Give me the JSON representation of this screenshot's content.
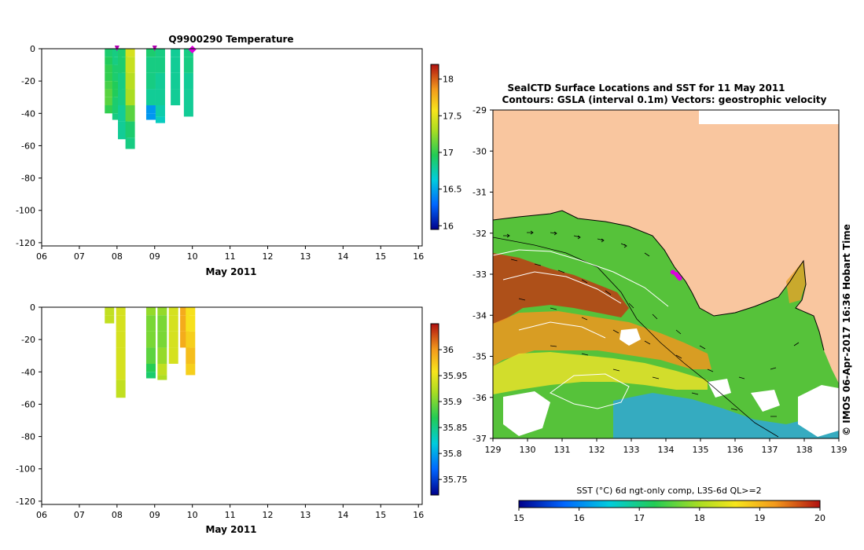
{
  "chart_data": [
    {
      "type": "heatmap",
      "title": "Q9900290  Temperature",
      "xlabel": "May 2011",
      "ylabel": "",
      "x_ticks": [
        "06",
        "07",
        "08",
        "09",
        "10",
        "11",
        "12",
        "13",
        "14",
        "15",
        "16"
      ],
      "y_ticks": [
        "0",
        "-20",
        "-40",
        "-60",
        "-80",
        "-100",
        "-120"
      ],
      "xlim": [
        6,
        16.1
      ],
      "ylim": [
        -122,
        0
      ],
      "profile_markers": [
        8.0,
        9.0
      ],
      "current_marker": 10.0,
      "colorbar": {
        "min": 15.95,
        "max": 18.2,
        "ticks": [
          "16",
          "16.5",
          "17",
          "17.5",
          "18"
        ]
      },
      "profiles": [
        {
          "day": 7.8,
          "depths": [
            -5,
            -10,
            -15,
            -20,
            -25,
            -30,
            -35,
            -40
          ],
          "values": [
            16.9,
            16.95,
            17.0,
            17.0,
            17.05,
            17.1,
            17.1,
            17.0
          ]
        },
        {
          "day": 8.0,
          "depths": [
            -5,
            -10,
            -15,
            -20,
            -25,
            -30,
            -35,
            -40,
            -44
          ],
          "values": [
            16.85,
            16.85,
            16.9,
            16.9,
            16.95,
            16.95,
            16.9,
            16.9,
            16.85
          ]
        },
        {
          "day": 8.15,
          "depths": [
            -5,
            -15,
            -25,
            -35,
            -45,
            -56
          ],
          "values": [
            16.9,
            16.9,
            16.85,
            16.85,
            16.8,
            16.8
          ]
        },
        {
          "day": 8.35,
          "depths": [
            -5,
            -15,
            -25,
            -35,
            -45,
            -55,
            -62
          ],
          "values": [
            17.45,
            17.4,
            17.35,
            17.3,
            17.1,
            16.9,
            16.85
          ]
        },
        {
          "day": 8.9,
          "depths": [
            -5,
            -15,
            -25,
            -35,
            -40,
            -44
          ],
          "values": [
            16.9,
            16.85,
            16.85,
            16.8,
            16.45,
            16.45
          ]
        },
        {
          "day": 9.15,
          "depths": [
            -5,
            -15,
            -25,
            -35,
            -42,
            -46
          ],
          "values": [
            16.85,
            16.85,
            16.8,
            16.8,
            16.75,
            16.7
          ]
        },
        {
          "day": 9.55,
          "depths": [
            -5,
            -15,
            -25,
            -35
          ],
          "values": [
            16.8,
            16.8,
            16.8,
            16.8
          ]
        },
        {
          "day": 9.9,
          "depths": [
            -5,
            -15,
            -25,
            -35,
            -42
          ],
          "values": [
            16.85,
            16.85,
            16.8,
            16.8,
            16.8
          ]
        }
      ]
    },
    {
      "type": "heatmap",
      "title": "",
      "xlabel": "May 2011",
      "ylabel": "",
      "x_ticks": [
        "06",
        "07",
        "08",
        "09",
        "10",
        "11",
        "12",
        "13",
        "14",
        "15",
        "16"
      ],
      "y_ticks": [
        "0",
        "-20",
        "-40",
        "-60",
        "-80",
        "-100",
        "-120"
      ],
      "xlim": [
        6,
        16.1
      ],
      "ylim": [
        -122,
        0
      ],
      "colorbar": {
        "min": 35.72,
        "max": 36.05,
        "ticks": [
          "35.75",
          "35.8",
          "35.85",
          "35.9",
          "35.95",
          "36"
        ]
      },
      "profiles": [
        {
          "day": 7.8,
          "depths": [
            -5,
            -10
          ],
          "values": [
            35.93,
            35.93
          ]
        },
        {
          "day": 8.1,
          "depths": [
            -5,
            -15,
            -25,
            -35,
            -45,
            -56
          ],
          "values": [
            35.94,
            35.94,
            35.94,
            35.94,
            35.94,
            35.93
          ]
        },
        {
          "day": 8.9,
          "depths": [
            -5,
            -15,
            -25,
            -35,
            -40,
            -44
          ],
          "values": [
            35.91,
            35.9,
            35.9,
            35.89,
            35.87,
            35.86
          ]
        },
        {
          "day": 9.2,
          "depths": [
            -5,
            -15,
            -25,
            -35,
            -42,
            -45
          ],
          "values": [
            35.91,
            35.9,
            35.9,
            35.91,
            35.93,
            35.92
          ]
        },
        {
          "day": 9.5,
          "depths": [
            -5,
            -15,
            -25,
            -35
          ],
          "values": [
            35.94,
            35.94,
            35.94,
            35.94
          ]
        },
        {
          "day": 9.8,
          "depths": [
            -5,
            -15,
            -25
          ],
          "values": [
            35.99,
            35.99,
            35.99
          ]
        },
        {
          "day": 9.95,
          "depths": [
            -5,
            -15,
            -25,
            -35,
            -42
          ],
          "values": [
            35.96,
            35.96,
            35.97,
            35.98,
            35.97
          ]
        }
      ]
    },
    {
      "type": "heatmap",
      "title": "SealCTD Surface Locations and SST for 11 May 2011",
      "subtitle": "Contours: GSLA (interval 0.1m) Vectors: geostrophic velocity",
      "x_ticks": [
        "129",
        "130",
        "131",
        "132",
        "133",
        "134",
        "135",
        "136",
        "137",
        "138",
        "139"
      ],
      "y_ticks": [
        "-29",
        "-30",
        "-31",
        "-32",
        "-33",
        "-34",
        "-35",
        "-36",
        "-37"
      ],
      "xlim": [
        129,
        139
      ],
      "ylim": [
        -37,
        -29
      ],
      "colorbar": {
        "label": "SST (°C) 6d ngt-only comp, L3S-6d QL>=2",
        "min": 15,
        "max": 20,
        "ticks": [
          "15",
          "16",
          "17",
          "18",
          "19",
          "20"
        ]
      },
      "side_label": "© IMOS 06-Apr-2017 16:36 Hobart Time",
      "seal_positions": [
        {
          "lon": 134.2,
          "lat": -32.95
        },
        {
          "lon": 134.3,
          "lat": -33.0
        },
        {
          "lon": 134.35,
          "lat": -33.05
        },
        {
          "lon": 134.4,
          "lat": -33.1
        }
      ]
    }
  ],
  "colors": {
    "land": "#f9c69f",
    "seal_marker": "#dd00dd",
    "contour": "#ffffff",
    "vector": "#000000"
  }
}
